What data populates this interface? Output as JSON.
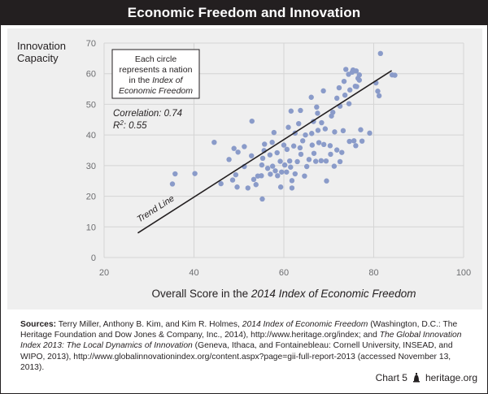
{
  "title": "Economic Freedom and Innovation",
  "chart_data": {
    "type": "scatter",
    "title": "Economic Freedom and Innovation",
    "xlabel_prefix": "Overall Score in the ",
    "xlabel_italic": "2014 Index of Economic Freedom",
    "ylabel_lines": [
      "Innovation",
      "Capacity"
    ],
    "xlim": [
      20,
      100
    ],
    "ylim": [
      0,
      70
    ],
    "xticks": [
      20,
      40,
      60,
      80,
      100
    ],
    "yticks": [
      0,
      10,
      20,
      30,
      40,
      50,
      60,
      70
    ],
    "grid": true,
    "marker_color": "#8a9bc9",
    "trend_line": {
      "label": "Trend Line",
      "x": [
        27.5,
        84.0
      ],
      "y": [
        8,
        61
      ]
    },
    "note_lines": [
      "Each circle",
      "represents a nation",
      "in the Index of",
      "Economic Freedom"
    ],
    "correlation_text": "Correlation: 0.74",
    "r2_label": "R",
    "r2_sup": "2",
    "r2_value": ": 0.55",
    "points": [
      [
        35.2,
        24.0
      ],
      [
        35.8,
        27.3
      ],
      [
        40.2,
        27.4
      ],
      [
        44.5,
        37.6
      ],
      [
        46.0,
        24.1
      ],
      [
        47.8,
        32.0
      ],
      [
        48.6,
        25.3
      ],
      [
        48.9,
        35.6
      ],
      [
        49.3,
        27.0
      ],
      [
        49.8,
        34.4
      ],
      [
        49.6,
        23.0
      ],
      [
        51.2,
        36.2
      ],
      [
        51.2,
        29.7
      ],
      [
        52.0,
        22.7
      ],
      [
        52.8,
        33.2
      ],
      [
        52.9,
        44.5
      ],
      [
        53.3,
        25.5
      ],
      [
        53.8,
        23.8
      ],
      [
        54.2,
        26.6
      ],
      [
        55.0,
        26.7
      ],
      [
        55.1,
        30.2
      ],
      [
        55.2,
        19.1
      ],
      [
        55.3,
        32.4
      ],
      [
        55.6,
        34.9
      ],
      [
        55.7,
        37.0
      ],
      [
        56.4,
        29.1
      ],
      [
        56.9,
        33.5
      ],
      [
        57.0,
        27.2
      ],
      [
        57.4,
        37.6
      ],
      [
        57.5,
        29.8
      ],
      [
        57.8,
        40.8
      ],
      [
        58.1,
        28.3
      ],
      [
        58.5,
        34.2
      ],
      [
        58.6,
        26.7
      ],
      [
        59.2,
        31.4
      ],
      [
        59.3,
        23.0
      ],
      [
        59.5,
        27.9
      ],
      [
        60.0,
        36.7
      ],
      [
        60.2,
        30.2
      ],
      [
        60.6,
        27.9
      ],
      [
        60.7,
        35.3
      ],
      [
        61.0,
        42.5
      ],
      [
        61.3,
        31.5
      ],
      [
        61.5,
        29.5
      ],
      [
        61.6,
        47.8
      ],
      [
        61.8,
        25.1
      ],
      [
        61.8,
        22.7
      ],
      [
        62.2,
        36.4
      ],
      [
        62.5,
        40.6
      ],
      [
        62.5,
        27.3
      ],
      [
        63.0,
        31.3
      ],
      [
        63.3,
        43.7
      ],
      [
        63.6,
        35.8
      ],
      [
        63.7,
        48.0
      ],
      [
        63.8,
        33.7
      ],
      [
        64.2,
        38.1
      ],
      [
        64.6,
        26.6
      ],
      [
        64.8,
        40.0
      ],
      [
        65.1,
        29.7
      ],
      [
        65.6,
        32.0
      ],
      [
        66.1,
        52.3
      ],
      [
        66.2,
        40.5
      ],
      [
        66.3,
        36.7
      ],
      [
        66.6,
        44.4
      ],
      [
        66.7,
        34.0
      ],
      [
        67.1,
        31.4
      ],
      [
        67.3,
        49.1
      ],
      [
        67.5,
        47.1
      ],
      [
        67.6,
        41.5
      ],
      [
        67.8,
        37.5
      ],
      [
        68.3,
        31.6
      ],
      [
        68.4,
        44.0
      ],
      [
        68.8,
        54.4
      ],
      [
        68.9,
        36.9
      ],
      [
        69.2,
        42.0
      ],
      [
        69.4,
        31.5
      ],
      [
        69.5,
        25.0
      ],
      [
        70.3,
        36.5
      ],
      [
        70.4,
        33.7
      ],
      [
        70.6,
        46.2
      ],
      [
        70.9,
        47.4
      ],
      [
        71.2,
        29.8
      ],
      [
        71.3,
        41.0
      ],
      [
        71.8,
        52.0
      ],
      [
        71.8,
        35.1
      ],
      [
        72.3,
        55.4
      ],
      [
        72.5,
        49.4
      ],
      [
        72.5,
        31.3
      ],
      [
        72.9,
        34.3
      ],
      [
        73.2,
        41.4
      ],
      [
        73.4,
        57.5
      ],
      [
        73.6,
        53.0
      ],
      [
        73.8,
        61.4
      ],
      [
        74.4,
        59.8
      ],
      [
        74.5,
        50.2
      ],
      [
        74.6,
        37.9
      ],
      [
        74.7,
        54.7
      ],
      [
        75.2,
        60.5
      ],
      [
        75.4,
        61.2
      ],
      [
        75.6,
        38.1
      ],
      [
        75.9,
        55.9
      ],
      [
        76.0,
        36.5
      ],
      [
        76.1,
        60.9
      ],
      [
        76.2,
        55.8
      ],
      [
        76.5,
        58.5
      ],
      [
        76.8,
        57.9
      ],
      [
        76.8,
        59.6
      ],
      [
        77.1,
        41.7
      ],
      [
        77.4,
        38.0
      ],
      [
        79.1,
        40.6
      ],
      [
        80.5,
        57.0
      ],
      [
        80.9,
        54.3
      ],
      [
        81.2,
        52.8
      ],
      [
        81.5,
        66.6
      ],
      [
        84.1,
        59.6
      ],
      [
        84.7,
        59.5
      ]
    ]
  },
  "sources": {
    "label": "Sources:",
    "t1": " Terry Miller, Anthony B. Kim, and Kim R. Holmes, ",
    "i1": "2014 Index of Economic Freedom",
    "t2": " (Washington, D.C.: The Heritage Foundation and Dow Jones & Company, Inc., 2014), http://www.heritage.org/index; and ",
    "i2": "The Global Innovation Index 2013: The Local Dynamics of Innovation",
    "t3": " (Geneva, Ithaca, and Fontainebleau: Cornell University, INSEAD, and WIPO, 2013), http://www.globalinnovationindex.org/content.aspx?page=gii-full-report-2013 (accessed November 13, 2013)."
  },
  "footer": {
    "chart_label": "Chart 5",
    "site": "heritage.org"
  }
}
